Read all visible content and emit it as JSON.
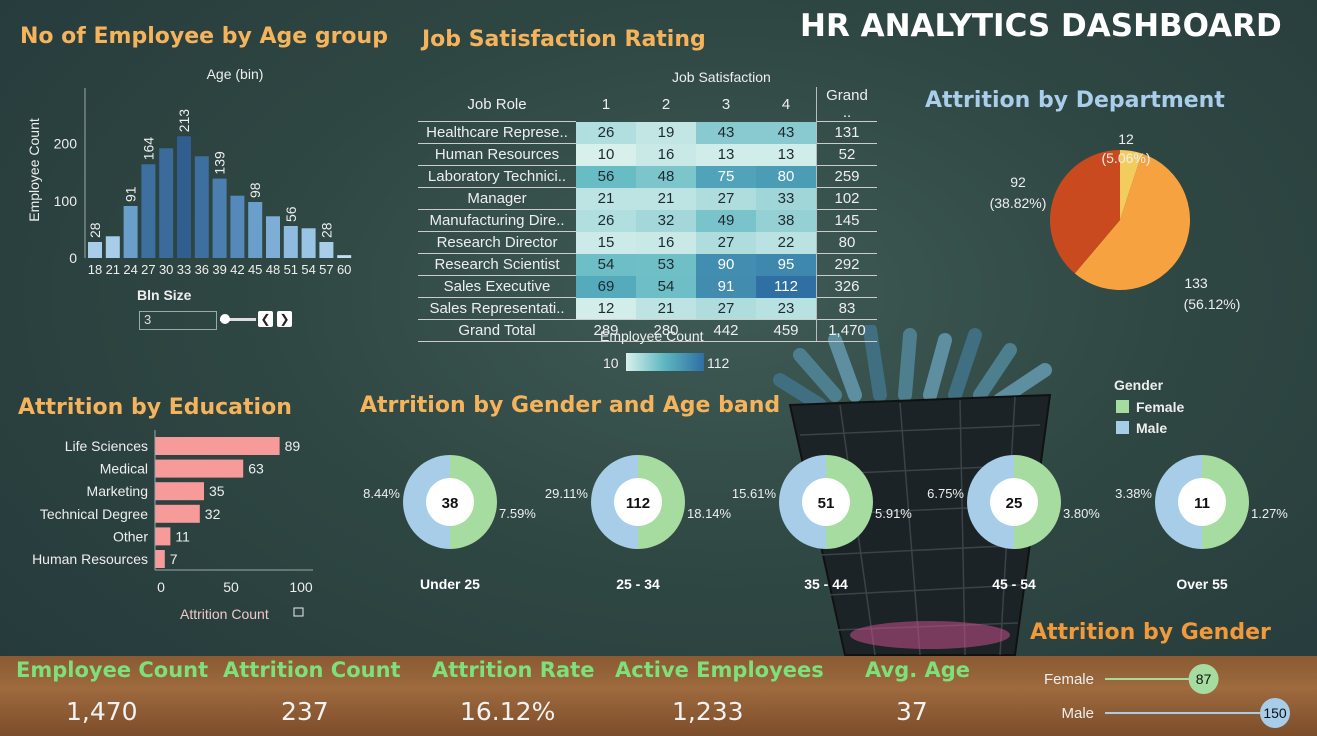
{
  "dashboard_title": "HR ANALYTICS DASHBOARD",
  "age_chart": {
    "title": "No of Employee by Age group",
    "bin_size_label": "Bln Size",
    "bin_size_value": "3",
    "chart_data": {
      "type": "bar",
      "title": "Age (bin)",
      "ylabel": "Employee Count",
      "categories": [
        "18",
        "21",
        "24",
        "27",
        "30",
        "33",
        "36",
        "39",
        "42",
        "45",
        "48",
        "51",
        "54",
        "57",
        "60"
      ],
      "values": [
        28,
        38,
        91,
        164,
        192,
        213,
        178,
        139,
        109,
        98,
        73,
        56,
        52,
        28,
        5
      ],
      "data_labels": [
        "28",
        "",
        "91",
        "164",
        "",
        "213",
        "",
        "139",
        "",
        "98",
        "",
        "56",
        "",
        "28",
        ""
      ],
      "y_ticks": [
        "0",
        "100",
        "200"
      ],
      "ylim": [
        0,
        280
      ],
      "colors": [
        "#a7cde8",
        "#a7cde8",
        "#6b9fcb",
        "#3d6f9f",
        "#3a6b9a",
        "#305f8f",
        "#3d6f9f",
        "#4a7fb0",
        "#5588bb",
        "#6b9fcb",
        "#7eaed6",
        "#8fbbe0",
        "#9ac4e4",
        "#a7cde8",
        "#c5dff0"
      ]
    }
  },
  "job_satisfaction": {
    "title": "Job Satisfaction Rating",
    "col_header": "Job Satisfaction",
    "row_header": "Job Role",
    "columns": [
      "1",
      "2",
      "3",
      "4",
      "Grand .."
    ],
    "rows": [
      {
        "role": "Healthcare Represe..",
        "v": [
          26,
          19,
          43,
          43
        ],
        "total": "131"
      },
      {
        "role": "Human Resources",
        "v": [
          10,
          16,
          13,
          13
        ],
        "total": "52"
      },
      {
        "role": "Laboratory Technici..",
        "v": [
          56,
          48,
          75,
          80
        ],
        "total": "259"
      },
      {
        "role": "Manager",
        "v": [
          21,
          21,
          27,
          33
        ],
        "total": "102"
      },
      {
        "role": "Manufacturing Dire..",
        "v": [
          26,
          32,
          49,
          38
        ],
        "total": "145"
      },
      {
        "role": "Research Director",
        "v": [
          15,
          16,
          27,
          22
        ],
        "total": "80"
      },
      {
        "role": "Research Scientist",
        "v": [
          54,
          53,
          90,
          95
        ],
        "total": "292"
      },
      {
        "role": "Sales Executive",
        "v": [
          69,
          54,
          91,
          112
        ],
        "total": "326"
      },
      {
        "role": "Sales Representati..",
        "v": [
          12,
          21,
          27,
          23
        ],
        "total": "83"
      }
    ],
    "grand_total": {
      "label": "Grand Total",
      "v": [
        "289",
        "280",
        "442",
        "459"
      ],
      "total": "1,470"
    },
    "legend_title": "Employee Count",
    "legend_min": "10",
    "legend_max": "112"
  },
  "attrition_department": {
    "title": "Attrition by Department",
    "chart_data": {
      "type": "pie",
      "slices": [
        {
          "value": 133,
          "label": "133",
          "pct": "(56.12%)",
          "color": "#f7a240"
        },
        {
          "value": 92,
          "label": "92",
          "pct": "(38.82%)",
          "color": "#c94a1f"
        },
        {
          "value": 12,
          "label": "12",
          "pct": "(5.06%)",
          "color": "#f2cd5e"
        }
      ]
    }
  },
  "attrition_education": {
    "title": "Attrition by Education",
    "axis_label": "Attrition Count",
    "chart_data": {
      "type": "bar",
      "categories": [
        "Life Sciences",
        "Medical",
        "Marketing",
        "Technical Degree",
        "Other",
        "Human Resources"
      ],
      "values": [
        89,
        63,
        35,
        32,
        11,
        7
      ],
      "x_ticks": [
        "0",
        "50",
        "100"
      ],
      "xlim": [
        0,
        100
      ],
      "color": "#f79a9a"
    }
  },
  "gender_age": {
    "title": "Atrrition by Gender and Age band",
    "legend_title": "Gender",
    "legend": [
      {
        "name": "Female",
        "color": "#a6dca0"
      },
      {
        "name": "Male",
        "color": "#a7cde8"
      }
    ],
    "chart_data": {
      "type": "pie",
      "bands": [
        {
          "band": "Under 25",
          "center": "38",
          "left_pct": "8.44%",
          "right_pct": "7.59%",
          "female_share": 0.5
        },
        {
          "band": "25 - 34",
          "center": "112",
          "left_pct": "29.11%",
          "right_pct": "18.14%",
          "female_share": 0.5
        },
        {
          "band": "35 - 44",
          "center": "51",
          "left_pct": "15.61%",
          "right_pct": "5.91%",
          "female_share": 0.5
        },
        {
          "band": "45 - 54",
          "center": "25",
          "left_pct": "6.75%",
          "right_pct": "3.80%",
          "female_share": 0.5
        },
        {
          "band": "Over 55",
          "center": "11",
          "left_pct": "3.38%",
          "right_pct": "1.27%",
          "female_share": 0.5
        }
      ]
    }
  },
  "attrition_gender": {
    "title": "Attrition by Gender",
    "chart_data": {
      "type": "bar",
      "categories": [
        "Female",
        "Male"
      ],
      "values": [
        87,
        150
      ],
      "labels": [
        "87",
        "150"
      ],
      "colors": [
        "#a6dca0",
        "#a7cde8"
      ],
      "xlim": [
        0,
        150
      ]
    }
  },
  "kpis": [
    {
      "label": "Employee Count",
      "value": "1,470"
    },
    {
      "label": "Attrition Count",
      "value": "237"
    },
    {
      "label": "Attrition Rate",
      "value": "16.12%"
    },
    {
      "label": "Active Employees",
      "value": "1,233"
    },
    {
      "label": "Avg. Age",
      "value": "37"
    }
  ]
}
